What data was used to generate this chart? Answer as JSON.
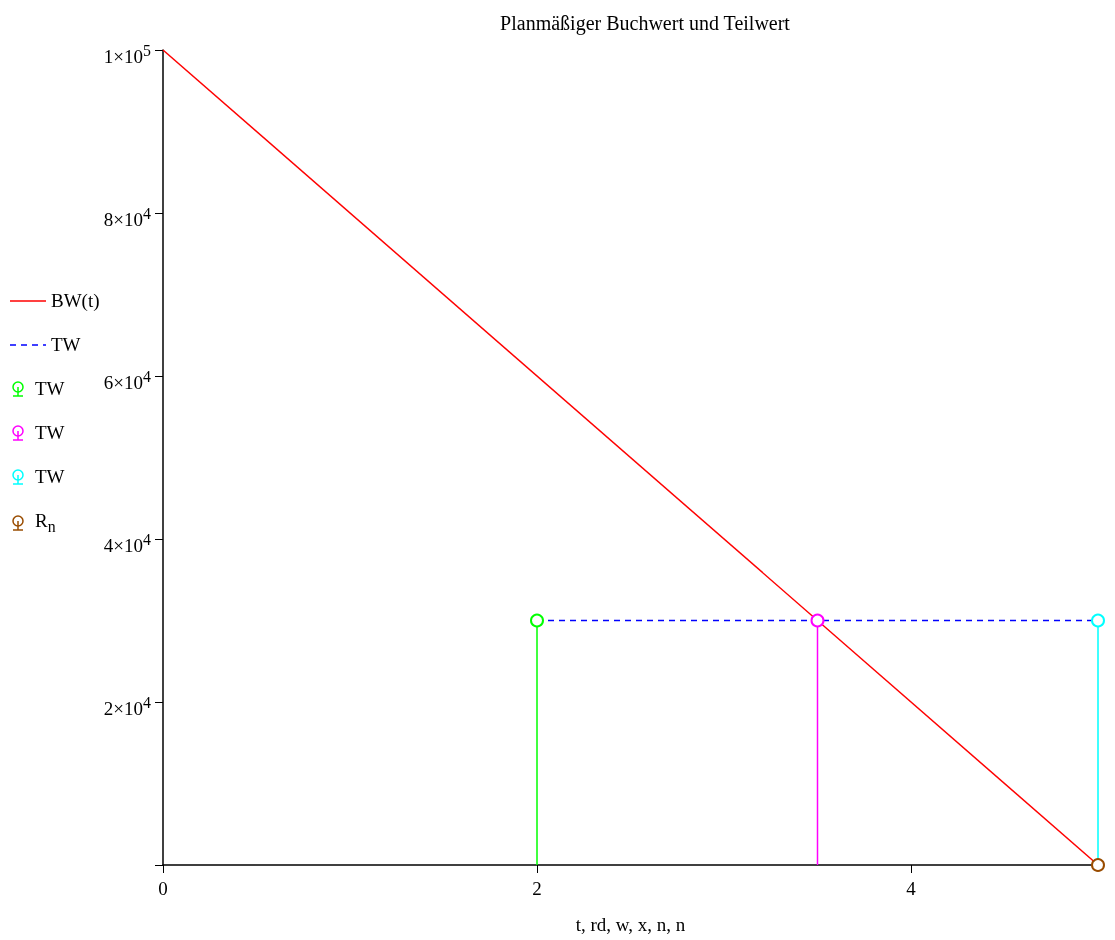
{
  "chart_data": {
    "type": "line",
    "title": "Planmäßiger Buchwert und Teilwert",
    "xlabel": "t, rd, w, x, n, n",
    "xlim": [
      0,
      5
    ],
    "xticks": [
      0,
      2,
      4
    ],
    "ylim": [
      0,
      100000
    ],
    "yticks": [
      {
        "value": 0,
        "label": null
      },
      {
        "value": 20000,
        "label": "2×10$^{4}$"
      },
      {
        "value": 40000,
        "label": "4×10$^{4}$"
      },
      {
        "value": 60000,
        "label": "6×10$^{4}$"
      },
      {
        "value": 80000,
        "label": "8×10$^{4}$"
      },
      {
        "value": 100000,
        "label": "1×10$^{5}$"
      }
    ],
    "grid": false,
    "legend": "left",
    "series": [
      {
        "name": "BW(t)",
        "color": "#ff0000",
        "line_style": "solid",
        "x": [
          0,
          5
        ],
        "values": [
          100000,
          0
        ]
      },
      {
        "name": "TW",
        "type": "line",
        "color": "#0000ff",
        "line_style": "dashed",
        "x": [
          2,
          5
        ],
        "values": [
          30000,
          30000
        ]
      },
      {
        "name": "TW",
        "type": "lollipop",
        "color": "#00ff00",
        "marker": "circle",
        "x": [
          2
        ],
        "values": [
          30000
        ]
      },
      {
        "name": "TW",
        "type": "lollipop",
        "color": "#ff00ff",
        "marker": "circle",
        "x": [
          3.5
        ],
        "values": [
          30000
        ]
      },
      {
        "name": "TW",
        "type": "lollipop",
        "color": "#00ffff",
        "marker": "circle",
        "x": [
          5
        ],
        "values": [
          30000
        ]
      },
      {
        "name": "R$_{n}$",
        "type": "lollipop",
        "color": "#994c00",
        "marker": "circle",
        "x": [
          5
        ],
        "values": [
          0
        ]
      }
    ]
  }
}
